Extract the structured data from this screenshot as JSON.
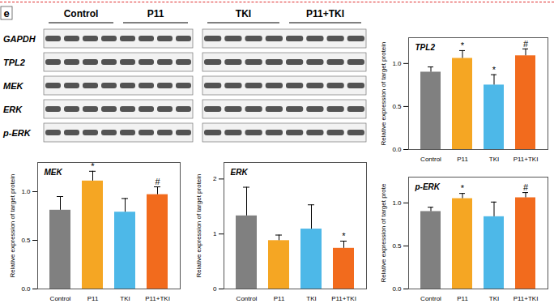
{
  "panel_label": "e",
  "blot": {
    "groups": [
      "Control",
      "P11",
      "TKI",
      "P11+TKI"
    ],
    "rows": [
      "GAPDH",
      "TPL2",
      "MEK",
      "ERK",
      "p-ERK"
    ]
  },
  "chart_data": [
    {
      "type": "bar",
      "title": "TPL2",
      "categories": [
        "Control",
        "P11",
        "TKI",
        "P11+TKI"
      ],
      "values": [
        0.9,
        1.06,
        0.75,
        1.09
      ],
      "errors": [
        0.06,
        0.09,
        0.12,
        0.08
      ],
      "significance": [
        null,
        "*",
        "*",
        "#"
      ],
      "colors": [
        "#808080",
        "#f5a623",
        "#4db8e8",
        "#f26b1d"
      ],
      "ylabel": "Relative expression of target protein",
      "ylim": [
        0,
        1.3
      ],
      "yticks": [
        {
          "value": 0,
          "label": "0.0"
        },
        {
          "value": 0.5,
          "label": "0.5"
        },
        {
          "value": 1,
          "label": "1.0"
        }
      ]
    },
    {
      "type": "bar",
      "title": "MEK",
      "categories": [
        "Control",
        "P11",
        "TKI",
        "P11+TKI"
      ],
      "values": [
        0.81,
        1.11,
        0.79,
        0.97
      ],
      "errors": [
        0.14,
        0.1,
        0.14,
        0.08
      ],
      "significance": [
        null,
        "*",
        null,
        "#"
      ],
      "colors": [
        "#808080",
        "#f5a623",
        "#4db8e8",
        "#f26b1d"
      ],
      "ylabel": "Relative expression of target protein",
      "ylim": [
        0,
        1.3
      ],
      "yticks": [
        {
          "value": 0,
          "label": "0.0"
        },
        {
          "value": 0.5,
          "label": "0.5"
        },
        {
          "value": 1,
          "label": "1.0"
        }
      ]
    },
    {
      "type": "bar",
      "title": "ERK",
      "categories": [
        "Control",
        "P11",
        "TKI",
        "P11+TKI"
      ],
      "values": [
        1.33,
        0.88,
        1.09,
        0.74
      ],
      "errors": [
        0.52,
        0.1,
        0.44,
        0.13
      ],
      "significance": [
        null,
        null,
        null,
        "*"
      ],
      "colors": [
        "#808080",
        "#f5a623",
        "#4db8e8",
        "#f26b1d"
      ],
      "ylabel": "Relative expression of target protein",
      "ylim": [
        0,
        2.3
      ],
      "yticks": [
        0,
        1,
        2
      ]
    },
    {
      "type": "bar",
      "title": "p-ERK",
      "categories": [
        "Control",
        "P11",
        "TKI",
        "P11+TKI"
      ],
      "values": [
        0.9,
        1.05,
        0.84,
        1.06
      ],
      "errors": [
        0.05,
        0.06,
        0.17,
        0.06
      ],
      "significance": [
        null,
        "*",
        null,
        "#"
      ],
      "colors": [
        "#808080",
        "#f5a623",
        "#4db8e8",
        "#f26b1d"
      ],
      "ylabel": "Relative expression of target prote",
      "ylim": [
        0,
        1.3
      ],
      "yticks": [
        {
          "value": 0,
          "label": "0.0"
        },
        {
          "value": 0.5,
          "label": "0.5"
        },
        {
          "value": 1,
          "label": "1.0"
        }
      ]
    }
  ]
}
